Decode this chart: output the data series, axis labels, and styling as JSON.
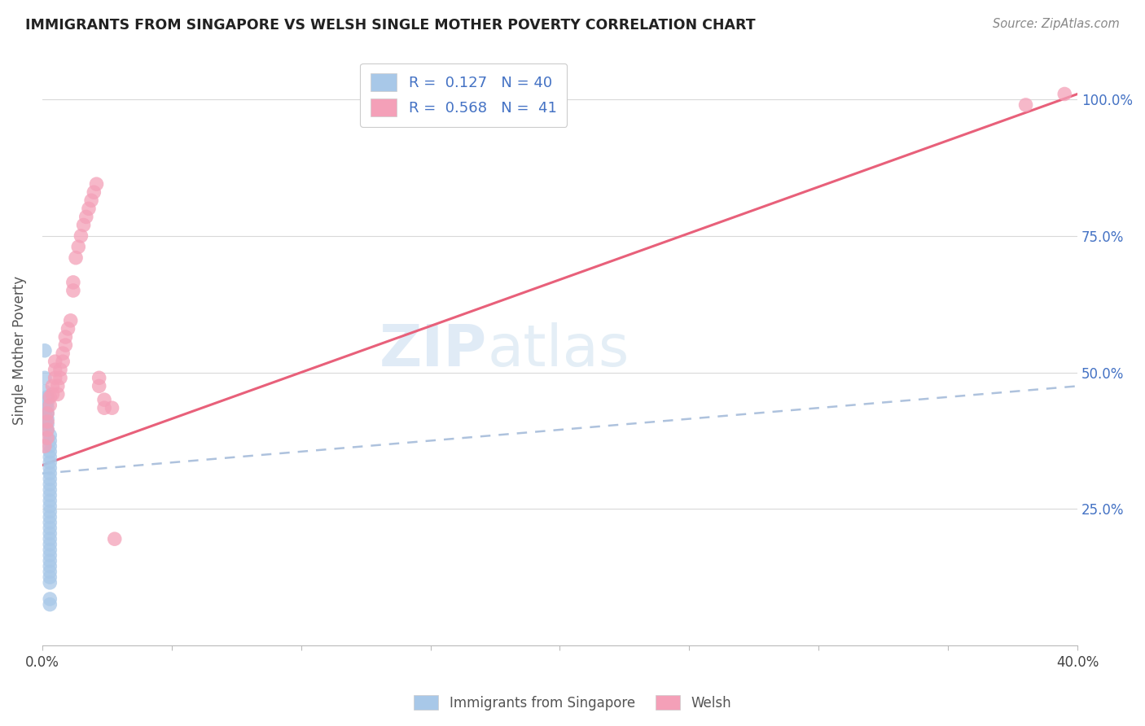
{
  "title": "IMMIGRANTS FROM SINGAPORE VS WELSH SINGLE MOTHER POVERTY CORRELATION CHART",
  "source": "Source: ZipAtlas.com",
  "ylabel": "Single Mother Poverty",
  "color_blue": "#a8c8e8",
  "color_pink": "#f4a0b8",
  "line_blue_color": "#a0b8d8",
  "line_pink_color": "#e8607a",
  "watermark_zip": "ZIP",
  "watermark_atlas": "atlas",
  "scatter_blue": [
    [
      0.001,
      0.54
    ],
    [
      0.001,
      0.49
    ],
    [
      0.001,
      0.465
    ],
    [
      0.002,
      0.455
    ],
    [
      0.002,
      0.445
    ],
    [
      0.002,
      0.435
    ],
    [
      0.002,
      0.425
    ],
    [
      0.002,
      0.415
    ],
    [
      0.002,
      0.405
    ],
    [
      0.002,
      0.395
    ],
    [
      0.003,
      0.385
    ],
    [
      0.003,
      0.375
    ],
    [
      0.003,
      0.365
    ],
    [
      0.003,
      0.355
    ],
    [
      0.003,
      0.345
    ],
    [
      0.003,
      0.335
    ],
    [
      0.003,
      0.325
    ],
    [
      0.003,
      0.315
    ],
    [
      0.003,
      0.305
    ],
    [
      0.003,
      0.295
    ],
    [
      0.003,
      0.285
    ],
    [
      0.003,
      0.275
    ],
    [
      0.003,
      0.265
    ],
    [
      0.003,
      0.255
    ],
    [
      0.003,
      0.245
    ],
    [
      0.003,
      0.235
    ],
    [
      0.003,
      0.225
    ],
    [
      0.003,
      0.215
    ],
    [
      0.003,
      0.205
    ],
    [
      0.003,
      0.195
    ],
    [
      0.003,
      0.185
    ],
    [
      0.003,
      0.175
    ],
    [
      0.003,
      0.165
    ],
    [
      0.003,
      0.155
    ],
    [
      0.003,
      0.145
    ],
    [
      0.003,
      0.135
    ],
    [
      0.003,
      0.125
    ],
    [
      0.003,
      0.115
    ],
    [
      0.003,
      0.085
    ],
    [
      0.003,
      0.075
    ]
  ],
  "scatter_pink": [
    [
      0.001,
      0.365
    ],
    [
      0.002,
      0.38
    ],
    [
      0.002,
      0.395
    ],
    [
      0.002,
      0.41
    ],
    [
      0.002,
      0.425
    ],
    [
      0.003,
      0.44
    ],
    [
      0.003,
      0.455
    ],
    [
      0.004,
      0.46
    ],
    [
      0.004,
      0.475
    ],
    [
      0.005,
      0.49
    ],
    [
      0.005,
      0.505
    ],
    [
      0.005,
      0.52
    ],
    [
      0.006,
      0.46
    ],
    [
      0.006,
      0.475
    ],
    [
      0.007,
      0.49
    ],
    [
      0.007,
      0.505
    ],
    [
      0.008,
      0.52
    ],
    [
      0.008,
      0.535
    ],
    [
      0.009,
      0.55
    ],
    [
      0.009,
      0.565
    ],
    [
      0.01,
      0.58
    ],
    [
      0.011,
      0.595
    ],
    [
      0.012,
      0.65
    ],
    [
      0.012,
      0.665
    ],
    [
      0.013,
      0.71
    ],
    [
      0.014,
      0.73
    ],
    [
      0.015,
      0.75
    ],
    [
      0.016,
      0.77
    ],
    [
      0.017,
      0.785
    ],
    [
      0.018,
      0.8
    ],
    [
      0.019,
      0.815
    ],
    [
      0.02,
      0.83
    ],
    [
      0.021,
      0.845
    ],
    [
      0.022,
      0.475
    ],
    [
      0.022,
      0.49
    ],
    [
      0.024,
      0.435
    ],
    [
      0.024,
      0.45
    ],
    [
      0.027,
      0.435
    ],
    [
      0.028,
      0.195
    ],
    [
      0.38,
      0.99
    ],
    [
      0.395,
      1.01
    ]
  ],
  "xlim": [
    0.0,
    0.4
  ],
  "ylim": [
    0.0,
    1.08
  ],
  "blue_trend_x": [
    0.0,
    0.4
  ],
  "blue_trend_y": [
    0.315,
    0.475
  ],
  "pink_trend_x": [
    0.0,
    0.4
  ],
  "pink_trend_y": [
    0.33,
    1.01
  ]
}
